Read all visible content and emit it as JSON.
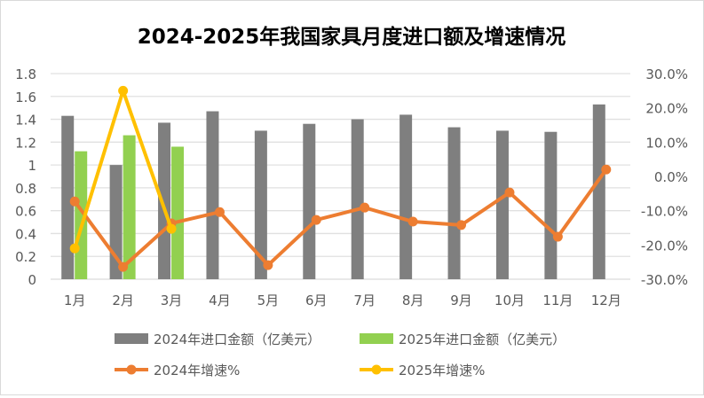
{
  "chart_data": {
    "type": "bar+line",
    "title": "2024-2025年我国家具月度进口额及增速情况",
    "categories": [
      "1月",
      "2月",
      "3月",
      "4月",
      "5月",
      "6月",
      "7月",
      "8月",
      "9月",
      "10月",
      "11月",
      "12月"
    ],
    "y_left": {
      "range": [
        0,
        1.8
      ],
      "ticks": [
        "0",
        "0.2",
        "0.4",
        "0.6",
        "0.8",
        "1",
        "1.2",
        "1.4",
        "1.6",
        "1.8"
      ]
    },
    "y_right": {
      "range": [
        -30,
        30
      ],
      "ticks": [
        "-30.0%",
        "-20.0%",
        "-10.0%",
        "0.0%",
        "10.0%",
        "20.0%",
        "30.0%"
      ]
    },
    "grid": true,
    "legend_position": "bottom",
    "series": [
      {
        "name": "2024年进口金额（亿美元）",
        "type": "bar",
        "axis": "left",
        "color": "#7f7f7f",
        "values": [
          1.43,
          1.0,
          1.37,
          1.47,
          1.3,
          1.36,
          1.4,
          1.44,
          1.33,
          1.3,
          1.29,
          1.53
        ]
      },
      {
        "name": "2025年进口金额（亿美元）",
        "type": "bar",
        "axis": "left",
        "color": "#92d050",
        "values": [
          1.12,
          1.26,
          1.16,
          null,
          null,
          null,
          null,
          null,
          null,
          null,
          null,
          null
        ]
      },
      {
        "name": "2024年增速%",
        "type": "line",
        "axis": "right",
        "color": "#ed7d31",
        "values": [
          -7.3,
          -26.4,
          -13.7,
          -10.4,
          -25.9,
          -12.7,
          -9.1,
          -13.2,
          -14.2,
          -4.7,
          -17.6,
          2.0
        ]
      },
      {
        "name": "2025年增速%",
        "type": "line",
        "axis": "right",
        "color": "#ffc000",
        "values": [
          -21.0,
          25.0,
          -15.3,
          null,
          null,
          null,
          null,
          null,
          null,
          null,
          null,
          null
        ]
      }
    ]
  }
}
